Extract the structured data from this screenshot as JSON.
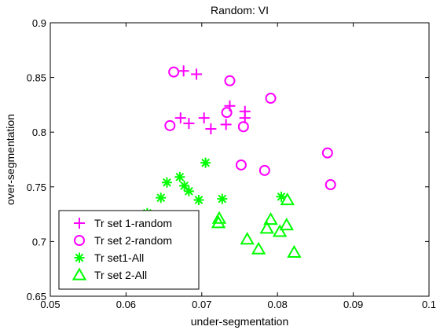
{
  "chart_data": {
    "type": "scatter",
    "title": "Random: VI",
    "xlabel": "under-segmentation",
    "ylabel": "over-segmentation",
    "xlim": [
      0.05,
      0.1
    ],
    "ylim": [
      0.65,
      0.9
    ],
    "xticks": [
      0.05,
      0.06,
      0.07,
      0.08,
      0.09,
      0.1
    ],
    "xtick_labels": [
      "0.05",
      "0.06",
      "0.07",
      "0.08",
      "0.09",
      "0.1"
    ],
    "yticks": [
      0.65,
      0.7,
      0.75,
      0.8,
      0.85,
      0.9
    ],
    "ytick_labels": [
      "0.65",
      "0.7",
      "0.75",
      "0.8",
      "0.85",
      "0.9"
    ],
    "grid": false,
    "legend_position": "bottom-left",
    "series": [
      {
        "name": "Tr set 1-random",
        "marker": "plus",
        "color": "#ff00ff",
        "points": [
          [
            0.0676,
            0.856
          ],
          [
            0.0693,
            0.853
          ],
          [
            0.0737,
            0.824
          ],
          [
            0.0757,
            0.819
          ],
          [
            0.0757,
            0.813
          ],
          [
            0.0672,
            0.813
          ],
          [
            0.0703,
            0.813
          ],
          [
            0.0732,
            0.807
          ],
          [
            0.0683,
            0.808
          ],
          [
            0.0712,
            0.803
          ]
        ]
      },
      {
        "name": "Tr set 2-random",
        "marker": "circle",
        "color": "#ff00ff",
        "points": [
          [
            0.0663,
            0.855
          ],
          [
            0.0737,
            0.847
          ],
          [
            0.0733,
            0.818
          ],
          [
            0.0791,
            0.831
          ],
          [
            0.0658,
            0.806
          ],
          [
            0.0755,
            0.805
          ],
          [
            0.0752,
            0.77
          ],
          [
            0.0783,
            0.765
          ],
          [
            0.0866,
            0.781
          ],
          [
            0.087,
            0.752
          ]
        ]
      },
      {
        "name": "Tr set1-All",
        "marker": "asterisk",
        "color": "#00ff00",
        "points": [
          [
            0.0671,
            0.759
          ],
          [
            0.0705,
            0.772
          ],
          [
            0.0654,
            0.754
          ],
          [
            0.0677,
            0.751
          ],
          [
            0.0683,
            0.746
          ],
          [
            0.0646,
            0.74
          ],
          [
            0.0696,
            0.738
          ],
          [
            0.0727,
            0.739
          ],
          [
            0.0805,
            0.741
          ],
          [
            0.0628,
            0.726
          ]
        ]
      },
      {
        "name": "Tr set 2-All",
        "marker": "triangle",
        "color": "#00ff00",
        "points": [
          [
            0.0813,
            0.738
          ],
          [
            0.0723,
            0.721
          ],
          [
            0.0722,
            0.717
          ],
          [
            0.0791,
            0.72
          ],
          [
            0.0786,
            0.712
          ],
          [
            0.0812,
            0.715
          ],
          [
            0.0803,
            0.709
          ],
          [
            0.076,
            0.702
          ],
          [
            0.0775,
            0.693
          ],
          [
            0.0822,
            0.69
          ]
        ]
      }
    ]
  }
}
